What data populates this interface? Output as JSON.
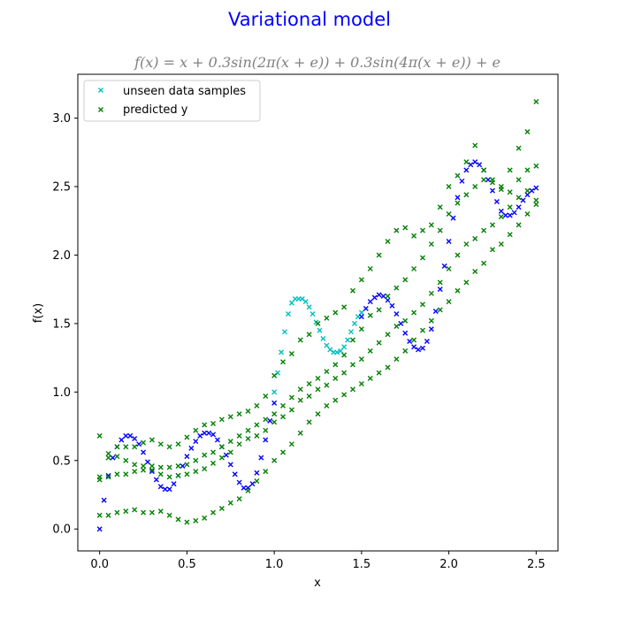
{
  "figure": {
    "suptitle": "Variational model",
    "subtitle": "f(x) = x + 0.3sin(2π(x + e)) + 0.3sin(4π(x + e)) + e"
  },
  "colors": {
    "suptitle": "#0000ff",
    "subtitle": "#808080",
    "unseen_data": "#00bfbf",
    "training_data": "#0000ff",
    "predicted": "#008000"
  },
  "chart_data": {
    "type": "scatter",
    "title": "f(x) = x + 0.3sin(2π(x + e)) + 0.3sin(4π(x + e)) + e",
    "xlabel": "x",
    "ylabel": "f(x)",
    "xlim": [
      -0.125,
      2.625
    ],
    "ylim": [
      -0.16,
      3.32
    ],
    "xticks": [
      0.0,
      0.5,
      1.0,
      1.5,
      2.0,
      2.5
    ],
    "xtick_labels": [
      "0.0",
      "0.5",
      "1.0",
      "1.5",
      "2.0",
      "2.5"
    ],
    "yticks": [
      0.0,
      0.5,
      1.0,
      1.5,
      2.0,
      2.5,
      3.0
    ],
    "ytick_labels": [
      "0.0",
      "0.5",
      "1.0",
      "1.5",
      "2.0",
      "2.5",
      "3.0"
    ],
    "grid": false,
    "legend_position": "upper-left",
    "legend": [
      "unseen data samples",
      "predicted y"
    ],
    "marker": "x",
    "series": [
      {
        "name": "unseen data samples",
        "role": "unseen",
        "x": [
          1.0,
          1.02,
          1.04,
          1.06,
          1.08,
          1.1,
          1.12,
          1.14,
          1.16,
          1.18,
          1.2,
          1.22,
          1.24,
          1.26,
          1.28,
          1.3,
          1.32,
          1.34,
          1.36,
          1.38,
          1.4,
          1.42,
          1.44,
          1.46,
          1.48,
          1.5
        ],
        "y": [
          1.0,
          1.14,
          1.29,
          1.44,
          1.57,
          1.65,
          1.68,
          1.68,
          1.68,
          1.66,
          1.62,
          1.57,
          1.51,
          1.45,
          1.39,
          1.34,
          1.31,
          1.29,
          1.29,
          1.3,
          1.33,
          1.38,
          1.44,
          1.5,
          1.55,
          1.58
        ]
      },
      {
        "role": "training",
        "x": [
          0.0,
          0.025,
          0.05,
          0.075,
          0.1,
          0.125,
          0.15,
          0.175,
          0.2,
          0.225,
          0.25,
          0.275,
          0.3,
          0.325,
          0.35,
          0.375,
          0.4,
          0.425,
          0.45,
          0.475,
          0.5,
          0.525,
          0.55,
          0.575,
          0.6,
          0.625,
          0.65,
          0.675,
          0.7,
          0.725,
          0.75,
          0.775,
          0.8,
          0.825,
          0.85,
          0.875,
          0.9,
          0.925,
          0.95,
          0.975,
          1.0,
          1.5,
          1.525,
          1.55,
          1.575,
          1.6,
          1.625,
          1.65,
          1.675,
          1.7,
          1.725,
          1.75,
          1.775,
          1.8,
          1.825,
          1.85,
          1.875,
          1.9,
          1.925,
          1.95,
          1.975,
          2.0,
          2.025,
          2.05,
          2.075,
          2.1,
          2.125,
          2.15,
          2.175,
          2.2,
          2.225,
          2.25,
          2.275,
          2.3,
          2.325,
          2.35,
          2.375,
          2.4,
          2.425,
          2.45,
          2.475,
          2.5
        ],
        "y": [
          0.0,
          0.21,
          0.39,
          0.52,
          0.6,
          0.65,
          0.68,
          0.68,
          0.66,
          0.62,
          0.56,
          0.49,
          0.42,
          0.36,
          0.31,
          0.29,
          0.29,
          0.33,
          0.39,
          0.46,
          0.53,
          0.59,
          0.64,
          0.68,
          0.7,
          0.7,
          0.69,
          0.65,
          0.6,
          0.54,
          0.47,
          0.4,
          0.34,
          0.3,
          0.3,
          0.33,
          0.41,
          0.52,
          0.65,
          0.79,
          0.92,
          1.55,
          1.61,
          1.66,
          1.69,
          1.71,
          1.7,
          1.67,
          1.63,
          1.57,
          1.5,
          1.43,
          1.37,
          1.33,
          1.31,
          1.32,
          1.37,
          1.46,
          1.59,
          1.75,
          1.92,
          2.1,
          2.27,
          2.42,
          2.54,
          2.62,
          2.66,
          2.68,
          2.66,
          2.62,
          2.55,
          2.47,
          2.39,
          2.32,
          2.29,
          2.29,
          2.31,
          2.35,
          2.4,
          2.44,
          2.47,
          2.49
        ]
      },
      {
        "name": "predicted y",
        "role": "predicted",
        "x": [
          0.0,
          0.05,
          0.1,
          0.15,
          0.2,
          0.25,
          0.3,
          0.35,
          0.4,
          0.45,
          0.5,
          0.55,
          0.6,
          0.65,
          0.7,
          0.75,
          0.8,
          0.85,
          0.9,
          0.95,
          1.0,
          1.05,
          1.1,
          1.15,
          1.2,
          1.25,
          1.3,
          1.35,
          1.4,
          1.45,
          1.5,
          1.55,
          1.6,
          1.65,
          1.7,
          1.75,
          1.8,
          1.85,
          1.9,
          1.95,
          2.0,
          2.05,
          2.1,
          2.15,
          2.2,
          2.25,
          2.3,
          2.35,
          2.4,
          2.45,
          2.5,
          0.0,
          0.05,
          0.1,
          0.15,
          0.2,
          0.25,
          0.3,
          0.35,
          0.4,
          0.45,
          0.5,
          0.55,
          0.6,
          0.65,
          0.7,
          0.75,
          0.8,
          0.85,
          0.9,
          0.95,
          1.0,
          1.05,
          1.1,
          1.15,
          1.2,
          1.25,
          1.3,
          1.35,
          1.4,
          1.45,
          1.5,
          1.55,
          1.6,
          1.65,
          1.7,
          1.75,
          1.8,
          1.85,
          1.9,
          1.95,
          2.0,
          2.05,
          2.1,
          2.15,
          2.2,
          2.25,
          2.3,
          2.35,
          2.4,
          2.45,
          2.5,
          0.0,
          0.05,
          0.1,
          0.15,
          0.2,
          0.25,
          0.3,
          0.35,
          0.4,
          0.45,
          0.5,
          0.55,
          0.6,
          0.65,
          0.7,
          0.75,
          0.8,
          0.85,
          0.9,
          0.95,
          1.0,
          1.05,
          1.1,
          1.15,
          1.2,
          1.25,
          1.3,
          1.35,
          1.4,
          1.45,
          1.5,
          1.55,
          1.6,
          1.65,
          1.7,
          1.75,
          1.8,
          1.85,
          1.9,
          1.95,
          2.0,
          2.05,
          2.1,
          2.15,
          2.2,
          2.25,
          2.3,
          2.35,
          2.4,
          2.45,
          2.5,
          0.0,
          0.05,
          0.1,
          0.15,
          0.2,
          0.25,
          0.3,
          0.35,
          0.4,
          0.45,
          0.5,
          0.55,
          0.6,
          0.65,
          0.7,
          0.75,
          0.8,
          0.85,
          0.9,
          0.95,
          1.0,
          1.05,
          1.1,
          1.15,
          1.2,
          1.25,
          1.3,
          1.35,
          1.4,
          1.45,
          1.5,
          1.55,
          1.6,
          1.65,
          1.7,
          1.75,
          1.8,
          1.85,
          1.9,
          1.95,
          2.0,
          2.05,
          2.1,
          2.15,
          2.2,
          2.25,
          2.3,
          2.35,
          2.4,
          2.45,
          2.5
        ],
        "y": [
          0.68,
          0.55,
          0.6,
          0.6,
          0.6,
          0.63,
          0.65,
          0.62,
          0.6,
          0.62,
          0.67,
          0.72,
          0.76,
          0.77,
          0.8,
          0.82,
          0.84,
          0.86,
          0.9,
          0.97,
          1.12,
          1.22,
          1.28,
          1.38,
          1.42,
          1.5,
          1.54,
          1.58,
          1.62,
          1.74,
          1.82,
          1.9,
          2.0,
          2.1,
          2.18,
          2.2,
          2.14,
          2.18,
          2.22,
          2.35,
          2.5,
          2.58,
          2.68,
          2.8,
          2.62,
          2.55,
          2.5,
          2.62,
          2.78,
          2.9,
          3.12,
          0.38,
          0.52,
          0.53,
          0.5,
          0.47,
          0.46,
          0.46,
          0.45,
          0.45,
          0.46,
          0.47,
          0.5,
          0.54,
          0.56,
          0.6,
          0.64,
          0.68,
          0.72,
          0.76,
          0.8,
          0.84,
          0.9,
          0.96,
          1.02,
          1.06,
          1.1,
          1.15,
          1.2,
          1.27,
          1.38,
          1.46,
          1.56,
          1.6,
          1.7,
          1.76,
          1.82,
          1.9,
          1.98,
          2.08,
          2.18,
          2.3,
          2.38,
          2.44,
          2.5,
          2.55,
          2.53,
          2.48,
          2.46,
          2.55,
          2.62,
          2.65,
          0.36,
          0.38,
          0.4,
          0.4,
          0.42,
          0.43,
          0.43,
          0.4,
          0.38,
          0.39,
          0.4,
          0.42,
          0.44,
          0.48,
          0.52,
          0.56,
          0.62,
          0.66,
          0.68,
          0.72,
          0.78,
          0.82,
          0.87,
          0.94,
          0.97,
          1.02,
          1.05,
          1.1,
          1.14,
          1.2,
          1.24,
          1.3,
          1.36,
          1.42,
          1.48,
          1.52,
          1.58,
          1.64,
          1.72,
          1.8,
          1.9,
          2.0,
          2.08,
          2.12,
          2.18,
          2.22,
          2.28,
          2.35,
          2.42,
          2.47,
          2.37,
          0.1,
          0.1,
          0.12,
          0.13,
          0.14,
          0.12,
          0.12,
          0.13,
          0.1,
          0.07,
          0.05,
          0.06,
          0.08,
          0.12,
          0.15,
          0.19,
          0.22,
          0.28,
          0.35,
          0.42,
          0.5,
          0.56,
          0.62,
          0.7,
          0.78,
          0.84,
          0.9,
          0.94,
          0.98,
          1.02,
          1.06,
          1.1,
          1.14,
          1.18,
          1.24,
          1.3,
          1.38,
          1.45,
          1.52,
          1.6,
          1.66,
          1.74,
          1.8,
          1.88,
          1.94,
          2.04,
          2.08,
          2.15,
          2.22,
          2.3,
          2.4
        ]
      }
    ]
  }
}
